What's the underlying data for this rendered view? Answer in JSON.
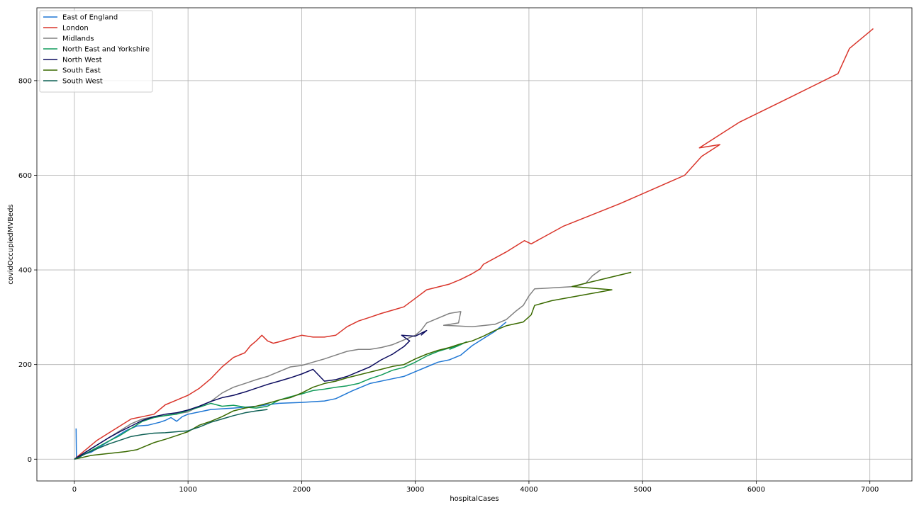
{
  "chart_data": {
    "type": "line",
    "title": "",
    "xlabel": "hospitalCases",
    "ylabel": "covidOccupiedMVBeds",
    "xlim": [
      -330,
      7370
    ],
    "ylim": [
      -46,
      954
    ],
    "xticks": [
      0,
      1000,
      2000,
      3000,
      4000,
      5000,
      6000,
      7000
    ],
    "yticks": [
      0,
      200,
      400,
      600,
      800
    ],
    "grid": true,
    "legend_position": "top-left",
    "series": [
      {
        "name": "East of England",
        "color": "#1f77d4",
        "points": [
          [
            15,
            65
          ],
          [
            18,
            2
          ],
          [
            20,
            4
          ],
          [
            40,
            6
          ],
          [
            80,
            10
          ],
          [
            150,
            15
          ],
          [
            250,
            30
          ],
          [
            350,
            45
          ],
          [
            450,
            60
          ],
          [
            550,
            70
          ],
          [
            650,
            72
          ],
          [
            750,
            78
          ],
          [
            800,
            82
          ],
          [
            850,
            88
          ],
          [
            900,
            80
          ],
          [
            950,
            90
          ],
          [
            1000,
            95
          ],
          [
            1100,
            100
          ],
          [
            1200,
            105
          ],
          [
            1400,
            108
          ],
          [
            1600,
            112
          ],
          [
            1800,
            118
          ],
          [
            2000,
            120
          ],
          [
            2200,
            123
          ],
          [
            2300,
            128
          ],
          [
            2450,
            145
          ],
          [
            2600,
            160
          ],
          [
            2800,
            170
          ],
          [
            2900,
            175
          ],
          [
            3000,
            185
          ],
          [
            3100,
            195
          ],
          [
            3200,
            205
          ],
          [
            3300,
            210
          ],
          [
            3400,
            220
          ],
          [
            3500,
            240
          ],
          [
            3600,
            255
          ],
          [
            3700,
            270
          ],
          [
            3800,
            290
          ]
        ]
      },
      {
        "name": "London",
        "color": "#d9352b",
        "points": [
          [
            0,
            0
          ],
          [
            100,
            20
          ],
          [
            200,
            40
          ],
          [
            300,
            55
          ],
          [
            400,
            70
          ],
          [
            500,
            85
          ],
          [
            600,
            90
          ],
          [
            700,
            95
          ],
          [
            800,
            115
          ],
          [
            900,
            125
          ],
          [
            1000,
            135
          ],
          [
            1100,
            150
          ],
          [
            1150,
            160
          ],
          [
            1200,
            170
          ],
          [
            1300,
            195
          ],
          [
            1400,
            215
          ],
          [
            1500,
            225
          ],
          [
            1550,
            240
          ],
          [
            1600,
            250
          ],
          [
            1650,
            262
          ],
          [
            1700,
            250
          ],
          [
            1750,
            245
          ],
          [
            1800,
            248
          ],
          [
            1900,
            255
          ],
          [
            2000,
            262
          ],
          [
            2100,
            258
          ],
          [
            2200,
            258
          ],
          [
            2300,
            262
          ],
          [
            2400,
            280
          ],
          [
            2500,
            292
          ],
          [
            2600,
            300
          ],
          [
            2700,
            308
          ],
          [
            2800,
            315
          ],
          [
            2900,
            322
          ],
          [
            3000,
            340
          ],
          [
            3100,
            358
          ],
          [
            3300,
            370
          ],
          [
            3400,
            380
          ],
          [
            3500,
            392
          ],
          [
            3570,
            402
          ],
          [
            3600,
            412
          ],
          [
            3800,
            438
          ],
          [
            3960,
            462
          ],
          [
            4020,
            455
          ],
          [
            4300,
            492
          ],
          [
            4800,
            540
          ],
          [
            5370,
            600
          ],
          [
            5520,
            640
          ],
          [
            5680,
            665
          ],
          [
            5500,
            658
          ],
          [
            5850,
            712
          ],
          [
            6300,
            765
          ],
          [
            6720,
            815
          ],
          [
            6820,
            868
          ],
          [
            7030,
            910
          ]
        ]
      },
      {
        "name": "Midlands",
        "color": "#808080",
        "points": [
          [
            0,
            0
          ],
          [
            100,
            15
          ],
          [
            200,
            30
          ],
          [
            300,
            45
          ],
          [
            400,
            60
          ],
          [
            500,
            75
          ],
          [
            600,
            85
          ],
          [
            700,
            90
          ],
          [
            800,
            92
          ],
          [
            900,
            96
          ],
          [
            1000,
            100
          ],
          [
            1100,
            112
          ],
          [
            1200,
            122
          ],
          [
            1300,
            140
          ],
          [
            1400,
            152
          ],
          [
            1500,
            160
          ],
          [
            1600,
            168
          ],
          [
            1700,
            175
          ],
          [
            1800,
            185
          ],
          [
            1900,
            195
          ],
          [
            2000,
            198
          ],
          [
            2100,
            205
          ],
          [
            2200,
            212
          ],
          [
            2300,
            220
          ],
          [
            2400,
            228
          ],
          [
            2500,
            232
          ],
          [
            2600,
            232
          ],
          [
            2700,
            236
          ],
          [
            2800,
            242
          ],
          [
            2900,
            252
          ],
          [
            3000,
            262
          ],
          [
            3050,
            272
          ],
          [
            3100,
            288
          ],
          [
            3200,
            298
          ],
          [
            3300,
            308
          ],
          [
            3400,
            312
          ],
          [
            3380,
            288
          ],
          [
            3250,
            283
          ],
          [
            3500,
            280
          ],
          [
            3700,
            285
          ],
          [
            3800,
            295
          ],
          [
            3880,
            312
          ],
          [
            3950,
            325
          ],
          [
            4000,
            345
          ],
          [
            4050,
            360
          ],
          [
            4400,
            365
          ],
          [
            4500,
            372
          ],
          [
            4560,
            388
          ],
          [
            4630,
            400
          ]
        ]
      },
      {
        "name": "North East and Yorkshire",
        "color": "#119b5b",
        "points": [
          [
            0,
            0
          ],
          [
            100,
            12
          ],
          [
            200,
            25
          ],
          [
            300,
            38
          ],
          [
            400,
            50
          ],
          [
            500,
            65
          ],
          [
            600,
            80
          ],
          [
            700,
            88
          ],
          [
            800,
            92
          ],
          [
            900,
            95
          ],
          [
            1000,
            103
          ],
          [
            1100,
            110
          ],
          [
            1200,
            118
          ],
          [
            1300,
            112
          ],
          [
            1400,
            114
          ],
          [
            1500,
            110
          ],
          [
            1600,
            108
          ],
          [
            1700,
            112
          ],
          [
            1800,
            125
          ],
          [
            1900,
            132
          ],
          [
            2000,
            138
          ],
          [
            2100,
            145
          ],
          [
            2200,
            148
          ],
          [
            2300,
            152
          ],
          [
            2400,
            155
          ],
          [
            2500,
            160
          ],
          [
            2600,
            170
          ],
          [
            2700,
            178
          ],
          [
            2800,
            188
          ],
          [
            2900,
            194
          ],
          [
            3000,
            205
          ],
          [
            3100,
            218
          ],
          [
            3200,
            228
          ],
          [
            3300,
            235
          ],
          [
            3400,
            242
          ],
          [
            3450,
            248
          ],
          [
            3380,
            240
          ],
          [
            3300,
            232
          ]
        ]
      },
      {
        "name": "North West",
        "color": "#0b0b5e",
        "points": [
          [
            0,
            0
          ],
          [
            100,
            15
          ],
          [
            200,
            30
          ],
          [
            300,
            45
          ],
          [
            400,
            58
          ],
          [
            500,
            70
          ],
          [
            600,
            82
          ],
          [
            700,
            90
          ],
          [
            800,
            95
          ],
          [
            900,
            98
          ],
          [
            1000,
            104
          ],
          [
            1100,
            112
          ],
          [
            1200,
            122
          ],
          [
            1300,
            130
          ],
          [
            1400,
            135
          ],
          [
            1500,
            142
          ],
          [
            1600,
            150
          ],
          [
            1700,
            158
          ],
          [
            1800,
            165
          ],
          [
            1900,
            172
          ],
          [
            2000,
            180
          ],
          [
            2100,
            190
          ],
          [
            2200,
            165
          ],
          [
            2300,
            168
          ],
          [
            2400,
            175
          ],
          [
            2500,
            185
          ],
          [
            2600,
            195
          ],
          [
            2700,
            210
          ],
          [
            2800,
            222
          ],
          [
            2900,
            238
          ],
          [
            2950,
            250
          ],
          [
            2880,
            262
          ],
          [
            3000,
            260
          ],
          [
            3100,
            272
          ],
          [
            3050,
            262
          ]
        ]
      },
      {
        "name": "South East",
        "color": "#3a6a00",
        "points": [
          [
            0,
            0
          ],
          [
            150,
            8
          ],
          [
            300,
            12
          ],
          [
            450,
            16
          ],
          [
            500,
            18
          ],
          [
            550,
            20
          ],
          [
            600,
            25
          ],
          [
            700,
            35
          ],
          [
            800,
            42
          ],
          [
            900,
            50
          ],
          [
            1000,
            58
          ],
          [
            1100,
            72
          ],
          [
            1200,
            80
          ],
          [
            1300,
            90
          ],
          [
            1400,
            102
          ],
          [
            1500,
            108
          ],
          [
            1600,
            112
          ],
          [
            1700,
            118
          ],
          [
            1800,
            125
          ],
          [
            1900,
            130
          ],
          [
            2000,
            140
          ],
          [
            2100,
            152
          ],
          [
            2200,
            160
          ],
          [
            2300,
            165
          ],
          [
            2400,
            172
          ],
          [
            2500,
            178
          ],
          [
            2600,
            184
          ],
          [
            2700,
            190
          ],
          [
            2800,
            196
          ],
          [
            2900,
            200
          ],
          [
            3000,
            212
          ],
          [
            3100,
            222
          ],
          [
            3200,
            230
          ],
          [
            3300,
            236
          ],
          [
            3400,
            244
          ],
          [
            3500,
            250
          ],
          [
            3600,
            260
          ],
          [
            3700,
            272
          ],
          [
            3800,
            282
          ],
          [
            3950,
            290
          ],
          [
            4020,
            305
          ],
          [
            4050,
            325
          ],
          [
            4200,
            335
          ],
          [
            4730,
            358
          ],
          [
            4380,
            365
          ],
          [
            4900,
            395
          ]
        ]
      },
      {
        "name": "South West",
        "color": "#0e6055",
        "points": [
          [
            0,
            0
          ],
          [
            50,
            5
          ],
          [
            100,
            12
          ],
          [
            200,
            22
          ],
          [
            300,
            32
          ],
          [
            400,
            40
          ],
          [
            500,
            48
          ],
          [
            600,
            52
          ],
          [
            700,
            55
          ],
          [
            800,
            56
          ],
          [
            900,
            58
          ],
          [
            1000,
            60
          ],
          [
            1100,
            68
          ],
          [
            1200,
            78
          ],
          [
            1300,
            85
          ],
          [
            1400,
            92
          ],
          [
            1500,
            98
          ],
          [
            1600,
            102
          ],
          [
            1700,
            105
          ]
        ]
      }
    ]
  }
}
